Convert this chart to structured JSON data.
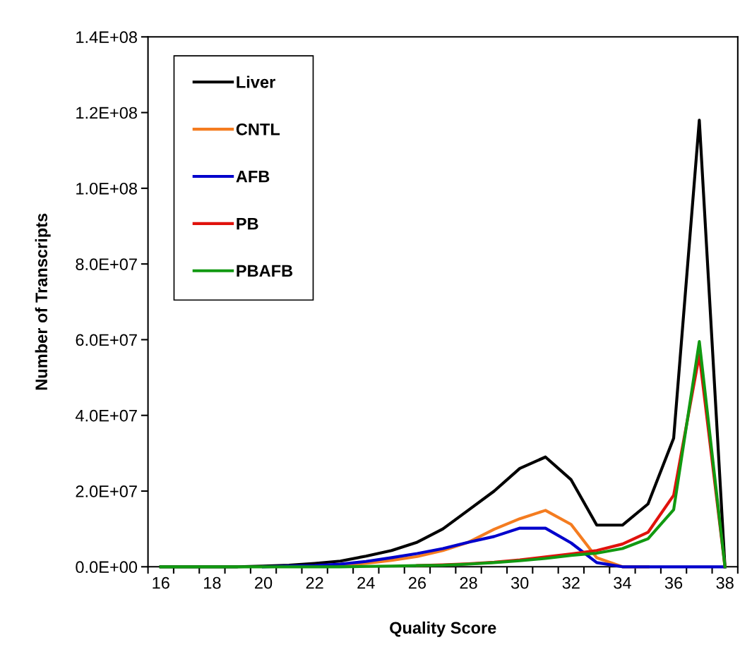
{
  "chart_data": {
    "type": "line",
    "xlabel": "Quality Score",
    "ylabel": "Number of Transcripts",
    "categories": [
      "16",
      null,
      "18",
      null,
      "20",
      null,
      "22",
      null,
      "24",
      null,
      "26",
      null,
      "28",
      null,
      "30",
      null,
      "32",
      null,
      "34",
      null,
      "36",
      null,
      "38"
    ],
    "ylim": [
      0,
      140000000
    ],
    "yticks": [
      {
        "value": 0,
        "label": "0.0E+00"
      },
      {
        "value": 20000000,
        "label": "2.0E+07"
      },
      {
        "value": 40000000,
        "label": "4.0E+07"
      },
      {
        "value": 60000000,
        "label": "6.0E+07"
      },
      {
        "value": 80000000,
        "label": "8.0E+07"
      },
      {
        "value": 100000000,
        "label": "1.0E+08"
      },
      {
        "value": 120000000,
        "label": "1.2E+08"
      },
      {
        "value": 140000000,
        "label": "1.4E+08"
      }
    ],
    "legend": "top left",
    "grid": false,
    "marker": "none",
    "line_style": "solid",
    "series": [
      {
        "name": "Liver",
        "color": "#000000",
        "values": [
          0,
          0,
          0,
          0,
          200000,
          400000,
          900000,
          1500000,
          2800000,
          4300000,
          6500000,
          10000000,
          15000000,
          20000000,
          26000000,
          29000000,
          23000000,
          11000000,
          11000000,
          16600000,
          34000000,
          118000000,
          0
        ]
      },
      {
        "name": "CNTL",
        "color": "#f47c20",
        "values": [
          null,
          null,
          null,
          null,
          null,
          null,
          200000,
          400000,
          900000,
          1700000,
          2700000,
          4300000,
          6500000,
          9900000,
          12700000,
          14900000,
          11200000,
          2400000,
          0,
          0,
          null,
          null,
          null
        ]
      },
      {
        "name": "AFB",
        "color": "#0000cc",
        "values": [
          null,
          null,
          null,
          null,
          0,
          200000,
          300000,
          700000,
          1400000,
          2400000,
          3500000,
          4800000,
          6500000,
          8000000,
          10200000,
          10200000,
          6300000,
          1100000,
          0,
          0,
          0,
          0,
          0
        ]
      },
      {
        "name": "PB",
        "color": "#e0120c",
        "values": [
          null,
          null,
          null,
          null,
          null,
          null,
          null,
          null,
          null,
          null,
          300000,
          500000,
          800000,
          1200000,
          1800000,
          2600000,
          3400000,
          4300000,
          6000000,
          9100000,
          18900000,
          56000000,
          0
        ]
      },
      {
        "name": "PBAFB",
        "color": "#119911",
        "values": [
          0,
          0,
          0,
          0,
          0,
          0,
          0,
          0,
          100000,
          200000,
          300000,
          400000,
          700000,
          1100000,
          1600000,
          2200000,
          3000000,
          3600000,
          4800000,
          7400000,
          15100000,
          59500000,
          0
        ]
      }
    ]
  }
}
